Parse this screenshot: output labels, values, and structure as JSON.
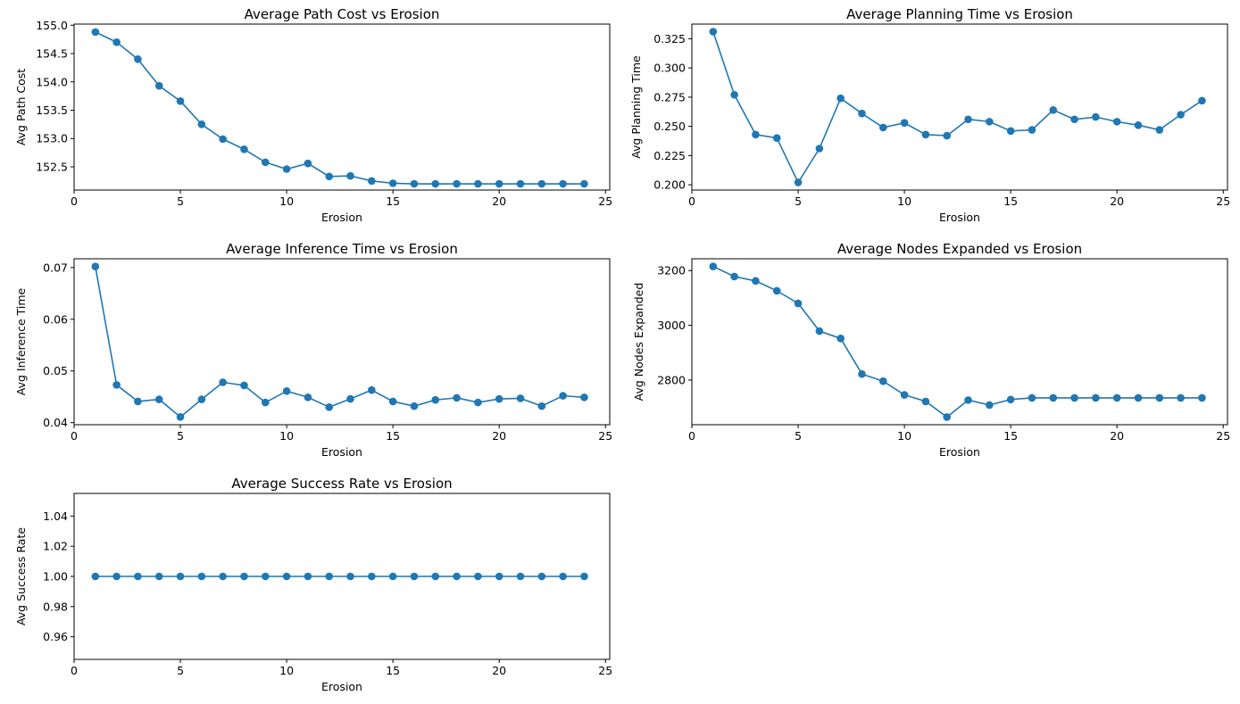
{
  "chart_data": [
    {
      "type": "line",
      "markers": "circle",
      "title": "Average Path Cost vs Erosion",
      "xlabel": "Erosion",
      "ylabel": "Avg Path Cost",
      "x": [
        1,
        2,
        3,
        4,
        5,
        6,
        7,
        8,
        9,
        10,
        11,
        12,
        13,
        14,
        15,
        16,
        17,
        18,
        19,
        20,
        21,
        22,
        23,
        24
      ],
      "series": [
        {
          "color": "#1f77b4",
          "values": [
            154.88,
            154.7,
            154.4,
            153.93,
            153.66,
            153.25,
            152.99,
            152.81,
            152.58,
            152.46,
            152.56,
            152.33,
            152.34,
            152.25,
            152.21,
            152.2,
            152.2,
            152.2,
            152.2,
            152.2,
            152.2,
            152.2,
            152.2,
            152.2
          ]
        }
      ],
      "xlim": [
        0,
        25.2
      ],
      "ylim": [
        152.09,
        155.02
      ],
      "xticks": [
        0,
        5,
        10,
        15,
        20,
        25
      ],
      "yticks": [
        152.5,
        153.0,
        153.5,
        154.0,
        154.5,
        155.0
      ],
      "xtick_labels": [
        "0",
        "5",
        "10",
        "15",
        "20",
        "25"
      ],
      "ytick_labels": [
        "152.5",
        "153.0",
        "153.5",
        "154.0",
        "154.5",
        "155.0"
      ],
      "grid": false
    },
    {
      "type": "line",
      "markers": "circle",
      "title": "Average Planning Time vs Erosion",
      "xlabel": "Erosion",
      "ylabel": "Avg Planning Time",
      "x": [
        1,
        2,
        3,
        4,
        5,
        6,
        7,
        8,
        9,
        10,
        11,
        12,
        13,
        14,
        15,
        16,
        17,
        18,
        19,
        20,
        21,
        22,
        23,
        24
      ],
      "series": [
        {
          "color": "#1f77b4",
          "values": [
            0.331,
            0.277,
            0.243,
            0.24,
            0.202,
            0.231,
            0.274,
            0.261,
            0.249,
            0.253,
            0.243,
            0.242,
            0.256,
            0.254,
            0.246,
            0.247,
            0.264,
            0.256,
            0.258,
            0.254,
            0.251,
            0.247,
            0.26,
            0.272
          ]
        }
      ],
      "xlim": [
        0,
        25.2
      ],
      "ylim": [
        0.1955,
        0.3375
      ],
      "xticks": [
        0,
        5,
        10,
        15,
        20,
        25
      ],
      "yticks": [
        0.2,
        0.225,
        0.25,
        0.275,
        0.3,
        0.325
      ],
      "xtick_labels": [
        "0",
        "5",
        "10",
        "15",
        "20",
        "25"
      ],
      "ytick_labels": [
        "0.200",
        "0.225",
        "0.250",
        "0.275",
        "0.300",
        "0.325"
      ],
      "grid": false
    },
    {
      "type": "line",
      "markers": "circle",
      "title": "Average Inference Time vs Erosion",
      "xlabel": "Erosion",
      "ylabel": "Avg Inference Time",
      "x": [
        1,
        2,
        3,
        4,
        5,
        6,
        7,
        8,
        9,
        10,
        11,
        12,
        13,
        14,
        15,
        16,
        17,
        18,
        19,
        20,
        21,
        22,
        23,
        24
      ],
      "series": [
        {
          "color": "#1f77b4",
          "values": [
            0.0702,
            0.0473,
            0.0441,
            0.0445,
            0.0411,
            0.0445,
            0.0478,
            0.0472,
            0.0439,
            0.0461,
            0.0449,
            0.043,
            0.0446,
            0.0463,
            0.0441,
            0.0432,
            0.0444,
            0.0448,
            0.0439,
            0.0446,
            0.0447,
            0.0432,
            0.0452,
            0.0449
          ]
        }
      ],
      "xlim": [
        0,
        25.2
      ],
      "ylim": [
        0.0396,
        0.0717
      ],
      "xticks": [
        0,
        5,
        10,
        15,
        20,
        25
      ],
      "yticks": [
        0.04,
        0.05,
        0.06,
        0.07
      ],
      "xtick_labels": [
        "0",
        "5",
        "10",
        "15",
        "20",
        "25"
      ],
      "ytick_labels": [
        "0.04",
        "0.05",
        "0.06",
        "0.07"
      ],
      "grid": false
    },
    {
      "type": "line",
      "markers": "circle",
      "title": "Average Nodes Expanded vs Erosion",
      "xlabel": "Erosion",
      "ylabel": "Avg Nodes Expanded",
      "x": [
        1,
        2,
        3,
        4,
        5,
        6,
        7,
        8,
        9,
        10,
        11,
        12,
        13,
        14,
        15,
        16,
        17,
        18,
        19,
        20,
        21,
        22,
        23,
        24
      ],
      "series": [
        {
          "color": "#1f77b4",
          "values": [
            3215,
            3178,
            3162,
            3126,
            3080,
            2979,
            2952,
            2822,
            2796,
            2746,
            2722,
            2665,
            2727,
            2709,
            2729,
            2735,
            2735,
            2735,
            2735,
            2735,
            2735,
            2735,
            2735,
            2735
          ]
        }
      ],
      "xlim": [
        0,
        25.2
      ],
      "ylim": [
        2637,
        3243
      ],
      "xticks": [
        0,
        5,
        10,
        15,
        20,
        25
      ],
      "yticks": [
        2800,
        3000,
        3200
      ],
      "xtick_labels": [
        "0",
        "5",
        "10",
        "15",
        "20",
        "25"
      ],
      "ytick_labels": [
        "2800",
        "3000",
        "3200"
      ],
      "grid": false
    },
    {
      "type": "line",
      "markers": "circle",
      "title": "Average Success Rate vs Erosion",
      "xlabel": "Erosion",
      "ylabel": "Avg Success Rate",
      "x": [
        1,
        2,
        3,
        4,
        5,
        6,
        7,
        8,
        9,
        10,
        11,
        12,
        13,
        14,
        15,
        16,
        17,
        18,
        19,
        20,
        21,
        22,
        23,
        24
      ],
      "series": [
        {
          "color": "#1f77b4",
          "values": [
            1.0,
            1.0,
            1.0,
            1.0,
            1.0,
            1.0,
            1.0,
            1.0,
            1.0,
            1.0,
            1.0,
            1.0,
            1.0,
            1.0,
            1.0,
            1.0,
            1.0,
            1.0,
            1.0,
            1.0,
            1.0,
            1.0,
            1.0,
            1.0
          ]
        }
      ],
      "xlim": [
        0,
        25.2
      ],
      "ylim": [
        0.945,
        1.055
      ],
      "xticks": [
        0,
        5,
        10,
        15,
        20,
        25
      ],
      "yticks": [
        0.96,
        0.98,
        1.0,
        1.02,
        1.04
      ],
      "xtick_labels": [
        "0",
        "5",
        "10",
        "15",
        "20",
        "25"
      ],
      "ytick_labels": [
        "0.96",
        "0.98",
        "1.00",
        "1.02",
        "1.04"
      ],
      "grid": false
    }
  ]
}
